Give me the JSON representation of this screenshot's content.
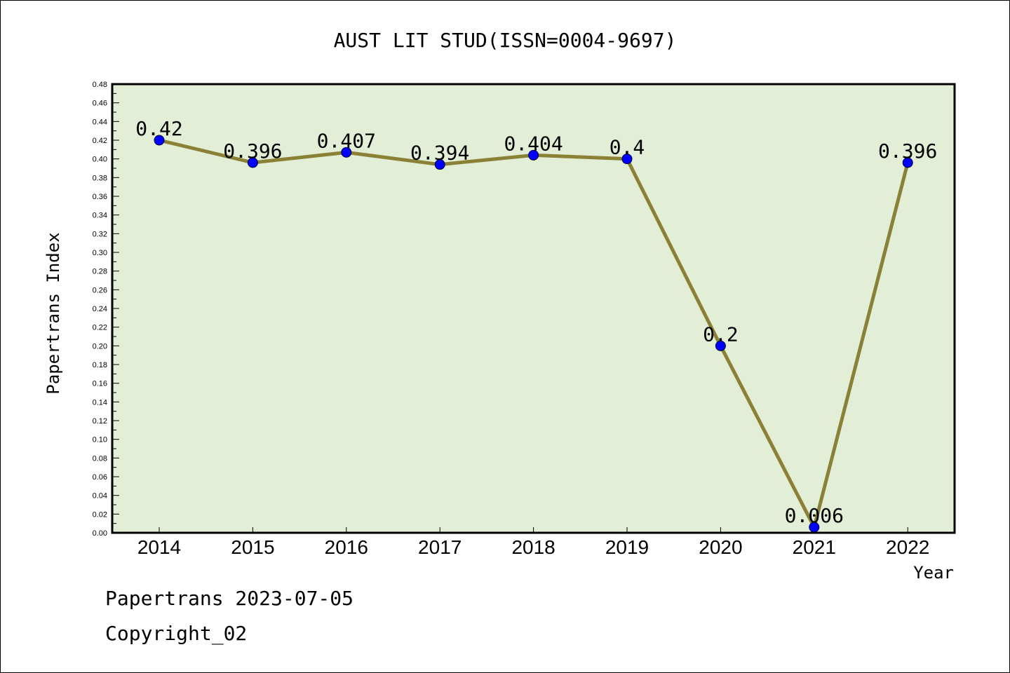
{
  "chart_data": {
    "type": "line",
    "title": "AUST LIT STUD(ISSN=0004-9697)",
    "xlabel": "Year",
    "ylabel": "Papertrans Index",
    "categories": [
      "2014",
      "2015",
      "2016",
      "2017",
      "2018",
      "2019",
      "2020",
      "2021",
      "2022"
    ],
    "series": [
      {
        "values": [
          0.42,
          0.396,
          0.407,
          0.394,
          0.404,
          0.4,
          0.2,
          0.006,
          0.396
        ]
      }
    ],
    "data_labels": [
      "0.42",
      "0.396",
      "0.407",
      "0.394",
      "0.404",
      "0.4",
      "0.2",
      "0.006",
      "0.396"
    ],
    "ylim": [
      0,
      0.48
    ],
    "yticks": [
      "0.00",
      "0.02",
      "0.04",
      "0.06",
      "0.08",
      "0.10",
      "0.12",
      "0.14",
      "0.16",
      "0.18",
      "0.20",
      "0.22",
      "0.24",
      "0.26",
      "0.28",
      "0.30",
      "0.32",
      "0.34",
      "0.36",
      "0.38",
      "0.40",
      "0.42",
      "0.44",
      "0.46",
      "0.48"
    ],
    "grid": false,
    "colors": {
      "plot_background": "#e2efd6",
      "line": "#8b8136",
      "marker": "#0000ff"
    }
  },
  "footer": {
    "line1": "Papertrans 2023-07-05",
    "line2": "Copyright_02"
  }
}
